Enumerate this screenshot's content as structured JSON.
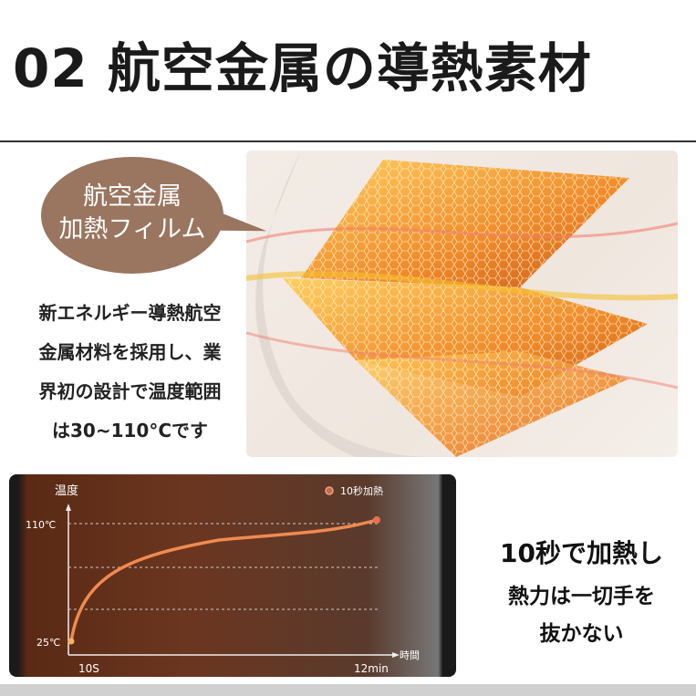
{
  "header": {
    "title": "02 航空金属の導熱素材"
  },
  "bubble": {
    "line1": "航空金属",
    "line2": "加熱フィルム"
  },
  "description": [
    "新エネルギー導熱航空",
    "金属材料を採用し、業",
    "界初の設計で温度範囲",
    "は30~110°Cです"
  ],
  "chart_data": {
    "type": "line",
    "ylabel": "温度",
    "xlabel": "時間",
    "y_ticks": [
      "110℃",
      "25℃"
    ],
    "x_ticks": [
      "10S",
      "12min"
    ],
    "legend": "10秒加熱",
    "series": [
      {
        "name": "10秒加熱",
        "points": [
          [
            "10S",
            25
          ],
          [
            "12min",
            110
          ]
        ]
      }
    ],
    "grid": "dashed horizontal",
    "colors": {
      "line": "#f08a50",
      "background": "#6b3620"
    }
  },
  "side": {
    "line1": "10秒で加熱し",
    "line2": "熱力は一切手を",
    "line3": "抜かない"
  }
}
